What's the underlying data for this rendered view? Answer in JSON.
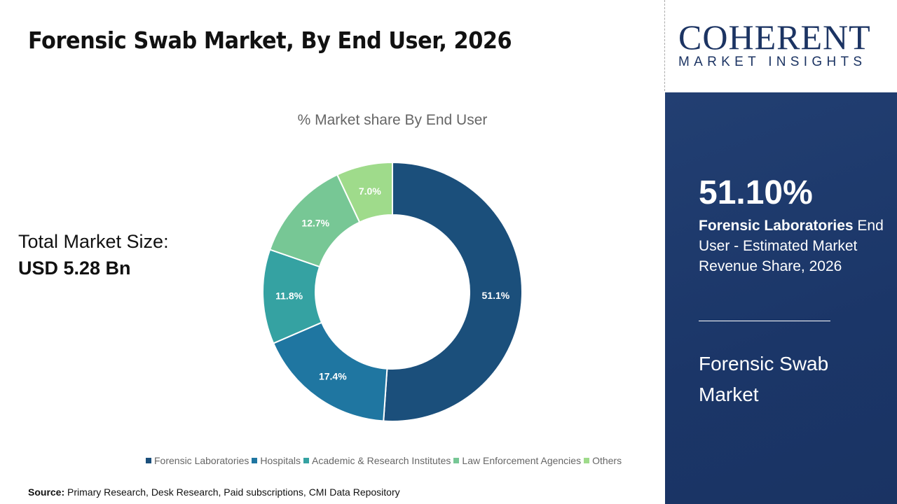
{
  "header": {
    "title": "Forensic Swab Market, By End User, 2026"
  },
  "total": {
    "label": "Total Market Size:",
    "value": "USD 5.28 Bn"
  },
  "source": {
    "label": "Source:",
    "text": " Primary Research, Desk Research, Paid subscriptions, CMI Data Repository"
  },
  "logo": {
    "brand": "COHERENT",
    "tagline": "MARKET INSIGHTS"
  },
  "panel": {
    "percent": "51.10%",
    "highlight": "Forensic Laboratories",
    "desc": " End User - Estimated Market Revenue Share, 2026",
    "market": "Forensic Swab Market"
  },
  "chart_data": {
    "type": "donut",
    "title": "% Market share By End User",
    "categories": [
      "Forensic Laboratories",
      "Hospitals",
      "Academic & Research Institutes",
      "Law Enforcement Agencies",
      "Others"
    ],
    "values": [
      51.1,
      17.4,
      11.8,
      12.7,
      7.0
    ],
    "labels": [
      "51.1%",
      "17.4%",
      "11.8%",
      "12.7%",
      "7.0%"
    ],
    "colors": [
      "#1b4f7b",
      "#1f76a1",
      "#35a2a2",
      "#77c795",
      "#9fdb8b"
    ],
    "legend_position": "bottom"
  }
}
